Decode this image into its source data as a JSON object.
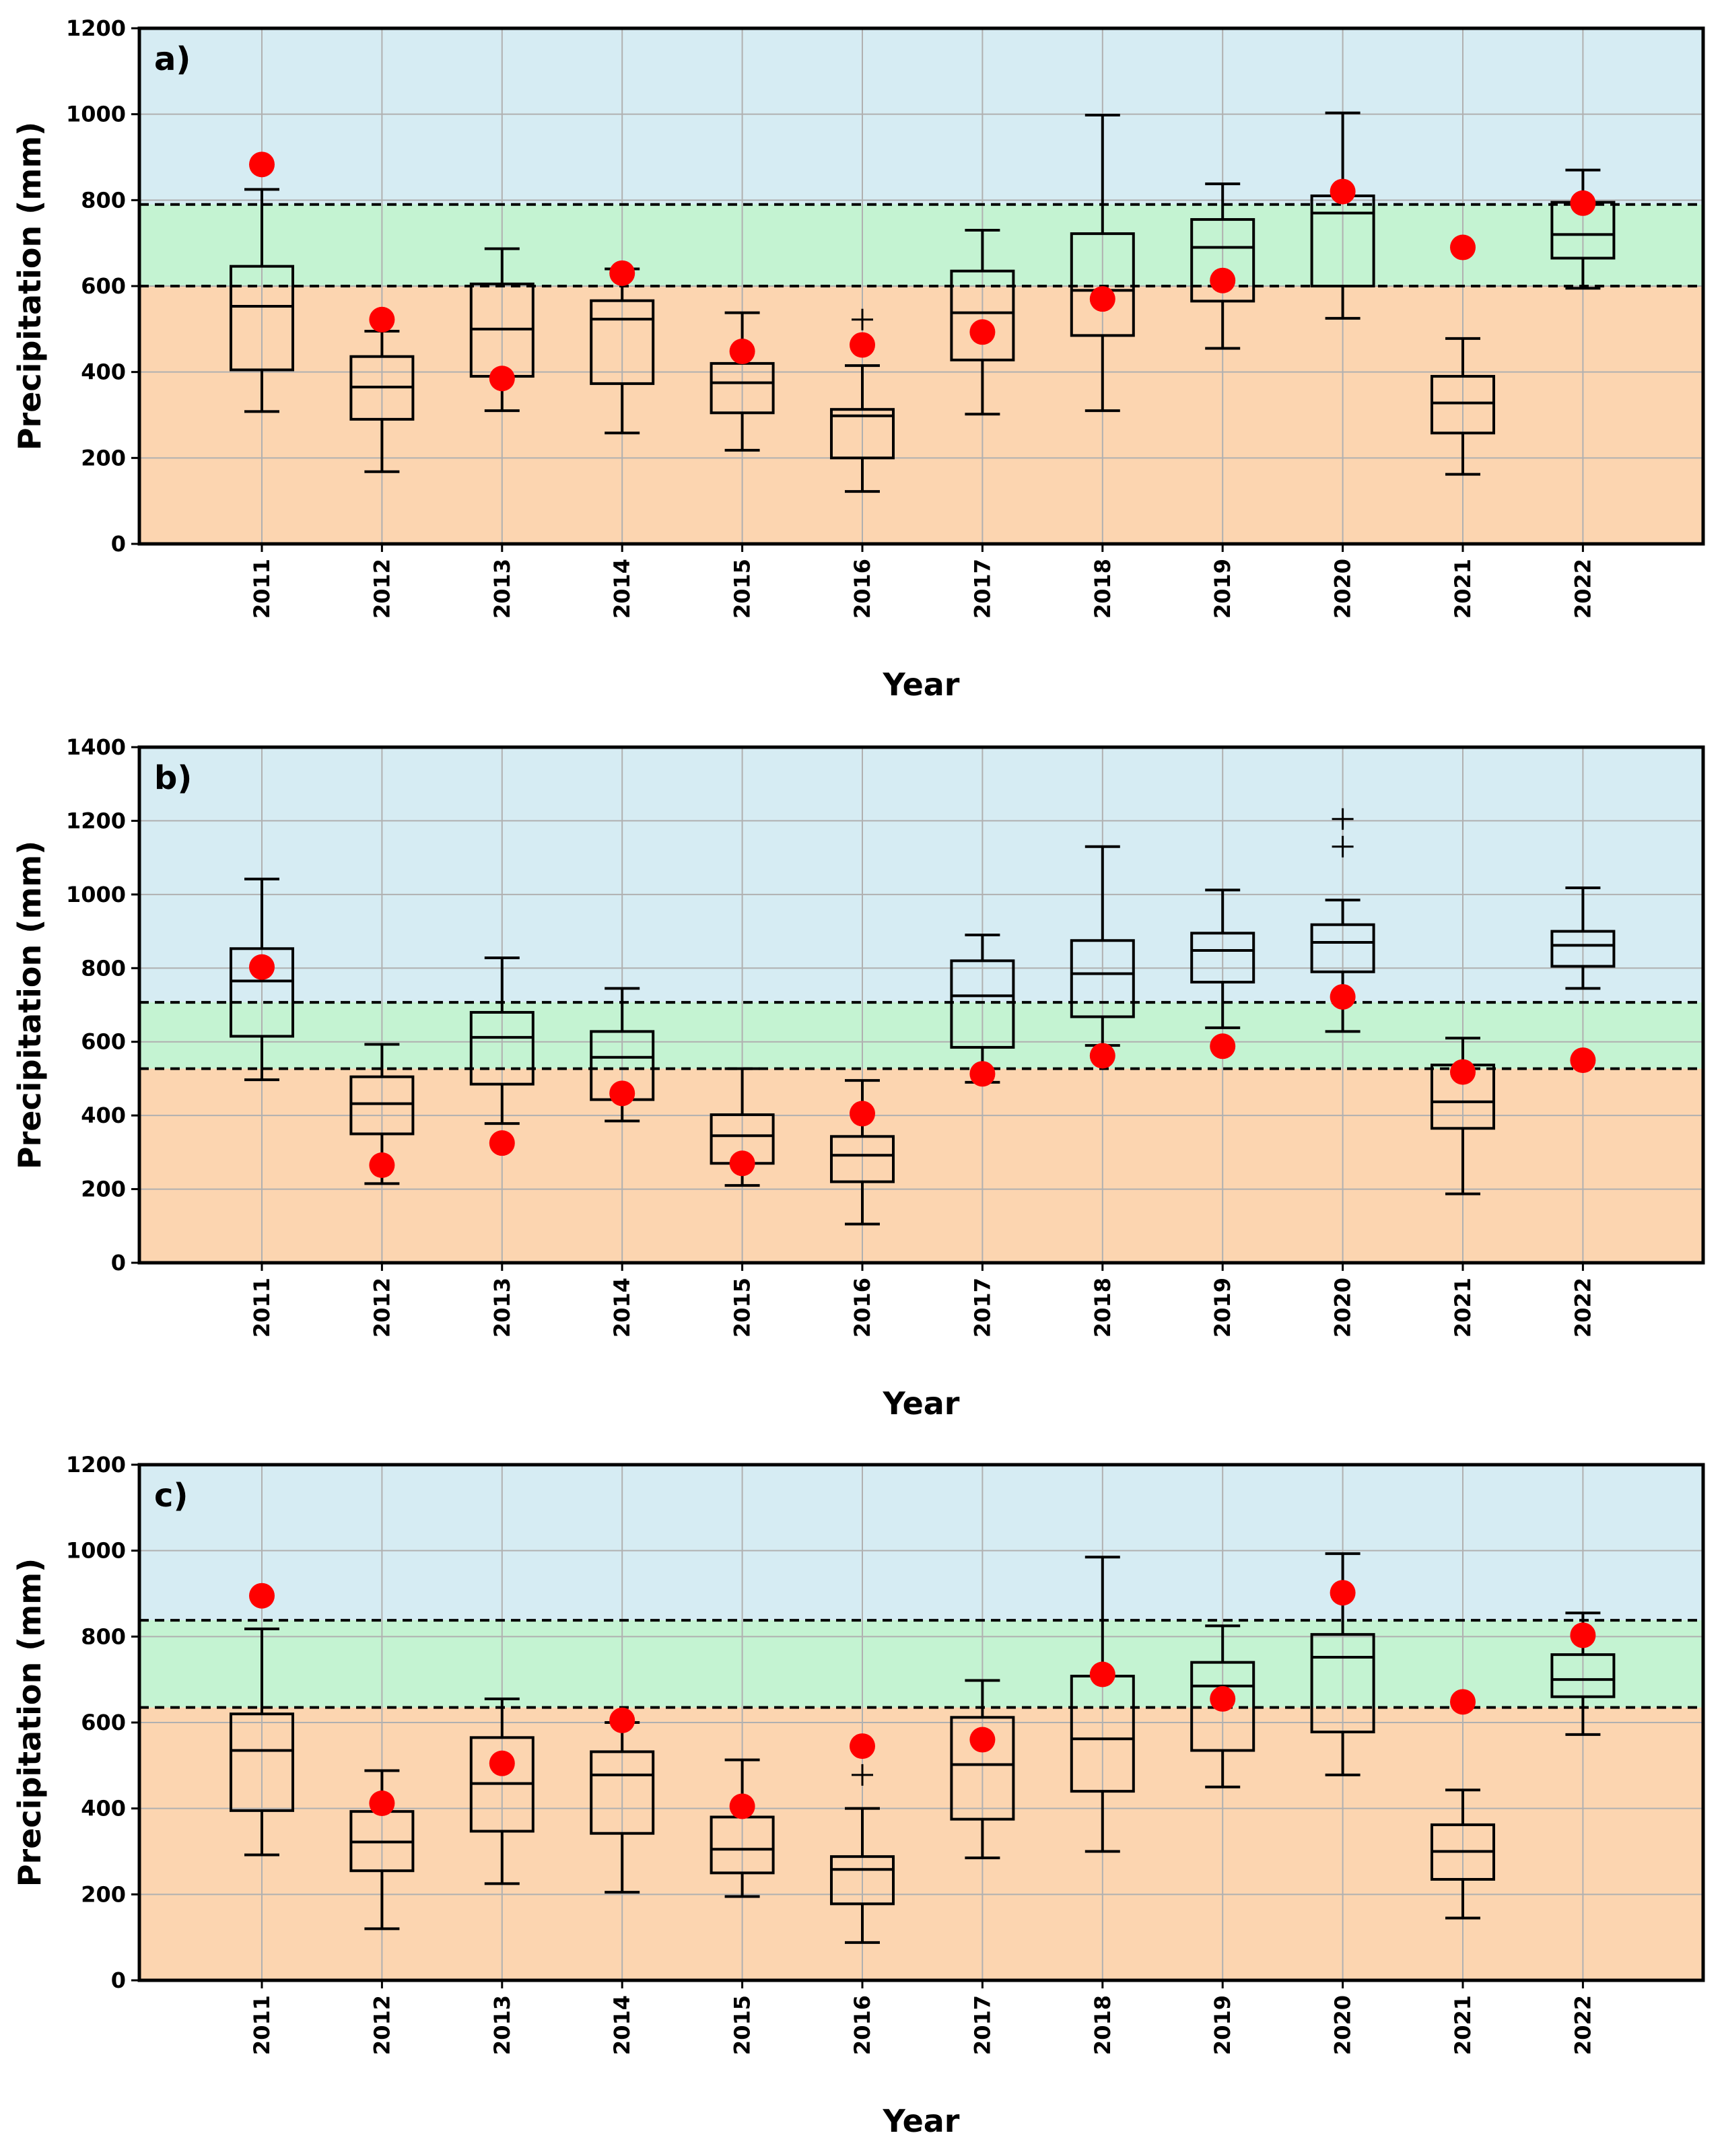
{
  "colors": {
    "wet": "#d6ecf3",
    "normal": "#c4f3d2",
    "dry": "#fcd5b0",
    "grid": "#b0b0b0",
    "observed": "#ff0000",
    "box": "#000000"
  },
  "chart_data": [
    {
      "type": "box",
      "panel_label": "a)",
      "xlabel": "Year",
      "ylabel": "Precipitation (mm)",
      "ylim": [
        0,
        1200
      ],
      "yticks": [
        0,
        200,
        400,
        600,
        800,
        1000,
        1200
      ],
      "categories": [
        "2011",
        "2012",
        "2013",
        "2014",
        "2015",
        "2016",
        "2017",
        "2018",
        "2019",
        "2020",
        "2021",
        "2022"
      ],
      "thresholds": {
        "lower": 600,
        "upper": 790
      },
      "boxes": [
        {
          "wl": 308,
          "q1": 405,
          "med": 553,
          "q3": 646,
          "wh": 825,
          "out": []
        },
        {
          "wl": 168,
          "q1": 290,
          "med": 365,
          "q3": 436,
          "wh": 495,
          "out": []
        },
        {
          "wl": 310,
          "q1": 390,
          "med": 500,
          "q3": 605,
          "wh": 687,
          "out": []
        },
        {
          "wl": 258,
          "q1": 373,
          "med": 523,
          "q3": 566,
          "wh": 640,
          "out": []
        },
        {
          "wl": 218,
          "q1": 305,
          "med": 375,
          "q3": 420,
          "wh": 538,
          "out": []
        },
        {
          "wl": 122,
          "q1": 200,
          "med": 298,
          "q3": 313,
          "wh": 415,
          "out": [
            522
          ]
        },
        {
          "wl": 302,
          "q1": 428,
          "med": 538,
          "q3": 635,
          "wh": 730,
          "out": []
        },
        {
          "wl": 310,
          "q1": 485,
          "med": 590,
          "q3": 722,
          "wh": 998,
          "out": []
        },
        {
          "wl": 455,
          "q1": 565,
          "med": 690,
          "q3": 755,
          "wh": 838,
          "out": []
        },
        {
          "wl": 525,
          "q1": 600,
          "med": 770,
          "q3": 810,
          "wh": 1003,
          "out": []
        },
        {
          "wl": 162,
          "q1": 258,
          "med": 328,
          "q3": 390,
          "wh": 478,
          "out": []
        },
        {
          "wl": 595,
          "q1": 665,
          "med": 720,
          "q3": 795,
          "wh": 870,
          "out": []
        }
      ],
      "observed": [
        883,
        522,
        385,
        630,
        448,
        463,
        493,
        570,
        613,
        820,
        690,
        793
      ]
    },
    {
      "type": "box",
      "panel_label": "b)",
      "xlabel": "Year",
      "ylabel": "Precipitation (mm)",
      "ylim": [
        0,
        1400
      ],
      "yticks": [
        0,
        200,
        400,
        600,
        800,
        1000,
        1200,
        1400
      ],
      "categories": [
        "2011",
        "2012",
        "2013",
        "2014",
        "2015",
        "2016",
        "2017",
        "2018",
        "2019",
        "2020",
        "2021",
        "2022"
      ],
      "thresholds": {
        "lower": 527,
        "upper": 707
      },
      "boxes": [
        {
          "wl": 497,
          "q1": 615,
          "med": 765,
          "q3": 853,
          "wh": 1042,
          "out": []
        },
        {
          "wl": 215,
          "q1": 350,
          "med": 432,
          "q3": 505,
          "wh": 593,
          "out": []
        },
        {
          "wl": 378,
          "q1": 485,
          "med": 612,
          "q3": 680,
          "wh": 828,
          "out": []
        },
        {
          "wl": 385,
          "q1": 443,
          "med": 558,
          "q3": 628,
          "wh": 745,
          "out": []
        },
        {
          "wl": 210,
          "q1": 270,
          "med": 345,
          "q3": 402,
          "wh": 527,
          "out": []
        },
        {
          "wl": 105,
          "q1": 220,
          "med": 292,
          "q3": 343,
          "wh": 495,
          "out": []
        },
        {
          "wl": 490,
          "q1": 585,
          "med": 725,
          "q3": 820,
          "wh": 890,
          "out": []
        },
        {
          "wl": 590,
          "q1": 668,
          "med": 785,
          "q3": 875,
          "wh": 1130,
          "out": []
        },
        {
          "wl": 638,
          "q1": 762,
          "med": 848,
          "q3": 895,
          "wh": 1012,
          "out": []
        },
        {
          "wl": 628,
          "q1": 790,
          "med": 870,
          "q3": 918,
          "wh": 985,
          "out": [
            1130,
            1205
          ]
        },
        {
          "wl": 187,
          "q1": 365,
          "med": 437,
          "q3": 537,
          "wh": 610,
          "out": []
        },
        {
          "wl": 745,
          "q1": 805,
          "med": 862,
          "q3": 900,
          "wh": 1018,
          "out": []
        }
      ],
      "observed": [
        803,
        265,
        325,
        460,
        270,
        405,
        513,
        562,
        588,
        722,
        518,
        550
      ]
    },
    {
      "type": "box",
      "panel_label": "c)",
      "xlabel": "Year",
      "ylabel": "Precipitation (mm)",
      "ylim": [
        0,
        1200
      ],
      "yticks": [
        0,
        200,
        400,
        600,
        800,
        1000,
        1200
      ],
      "categories": [
        "2011",
        "2012",
        "2013",
        "2014",
        "2015",
        "2016",
        "2017",
        "2018",
        "2019",
        "2020",
        "2021",
        "2022"
      ],
      "thresholds": {
        "lower": 635,
        "upper": 838
      },
      "boxes": [
        {
          "wl": 292,
          "q1": 395,
          "med": 535,
          "q3": 620,
          "wh": 818,
          "out": []
        },
        {
          "wl": 120,
          "q1": 255,
          "med": 322,
          "q3": 393,
          "wh": 488,
          "out": []
        },
        {
          "wl": 225,
          "q1": 347,
          "med": 458,
          "q3": 565,
          "wh": 655,
          "out": []
        },
        {
          "wl": 205,
          "q1": 342,
          "med": 478,
          "q3": 532,
          "wh": 600,
          "out": []
        },
        {
          "wl": 195,
          "q1": 250,
          "med": 305,
          "q3": 380,
          "wh": 513,
          "out": []
        },
        {
          "wl": 88,
          "q1": 178,
          "med": 258,
          "q3": 288,
          "wh": 400,
          "out": [
            478
          ]
        },
        {
          "wl": 285,
          "q1": 375,
          "med": 502,
          "q3": 612,
          "wh": 698,
          "out": []
        },
        {
          "wl": 300,
          "q1": 440,
          "med": 562,
          "q3": 708,
          "wh": 985,
          "out": []
        },
        {
          "wl": 450,
          "q1": 535,
          "med": 685,
          "q3": 740,
          "wh": 825,
          "out": []
        },
        {
          "wl": 478,
          "q1": 578,
          "med": 752,
          "q3": 805,
          "wh": 993,
          "out": []
        },
        {
          "wl": 145,
          "q1": 235,
          "med": 300,
          "q3": 362,
          "wh": 443,
          "out": []
        },
        {
          "wl": 572,
          "q1": 660,
          "med": 700,
          "q3": 758,
          "wh": 855,
          "out": []
        }
      ],
      "observed": [
        895,
        412,
        505,
        605,
        405,
        545,
        560,
        712,
        655,
        902,
        648,
        803
      ]
    }
  ]
}
